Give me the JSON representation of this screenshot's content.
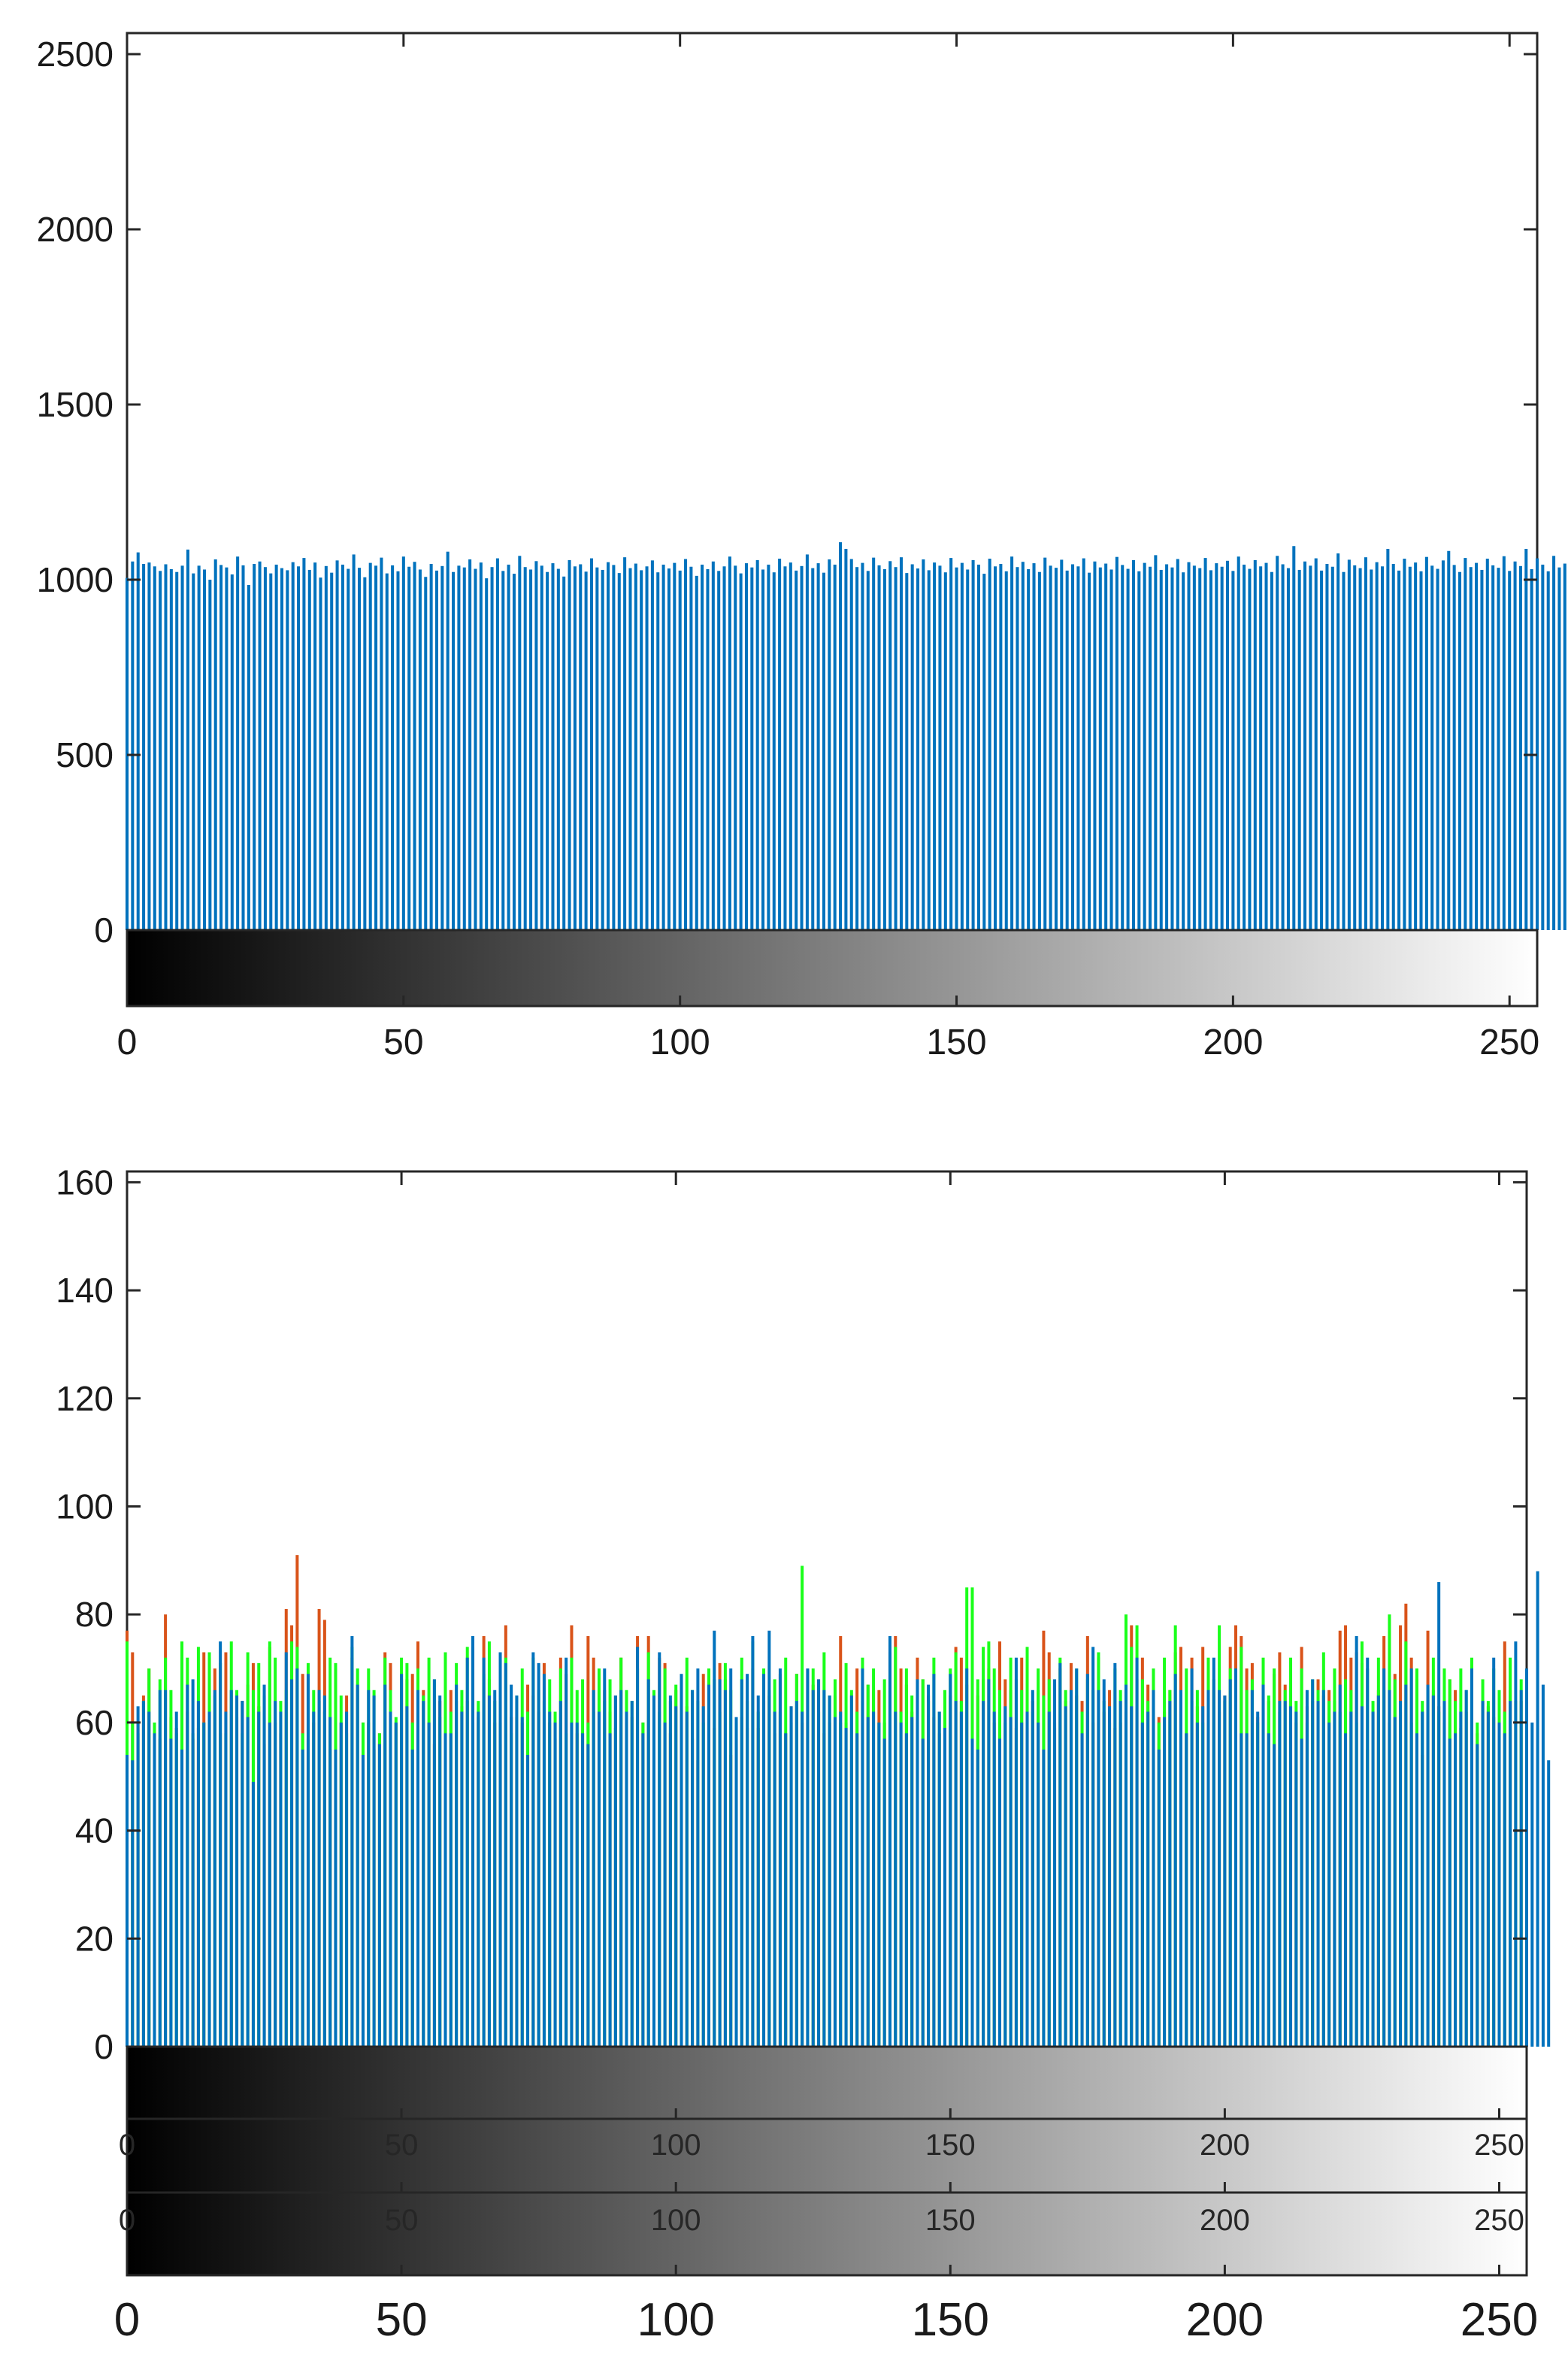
{
  "chart_data": [
    {
      "type": "bar",
      "description": "Gray-level histogram (256 bins)",
      "x_range": [
        0,
        255
      ],
      "ylim": [
        0,
        2560
      ],
      "yticks": [
        "0",
        "500",
        "1000",
        "1500",
        "2000",
        "2500"
      ],
      "xticks": [
        "0",
        "50",
        "100",
        "150",
        "200",
        "250"
      ],
      "grid": false,
      "colorbar": "grayscale 0-255 below x-axis",
      "series": [
        {
          "color": "#0072bd",
          "values": [
            1005,
            1052,
            1078,
            1045,
            1049,
            1038,
            1025,
            1044,
            1030,
            1022,
            1040,
            1086,
            1018,
            1040,
            1029,
            1000,
            1058,
            1042,
            1035,
            1015,
            1066,
            1041,
            985,
            1045,
            1052,
            1036,
            1018,
            1043,
            1033,
            1027,
            1050,
            1038,
            1062,
            1028,
            1049,
            1006,
            1039,
            1020,
            1055,
            1043,
            1031,
            1072,
            1034,
            1007,
            1048,
            1040,
            1063,
            1018,
            1041,
            1024,
            1066,
            1037,
            1051,
            1029,
            1008,
            1045,
            1026,
            1039,
            1080,
            1022,
            1040,
            1035,
            1058,
            1031,
            1049,
            1004,
            1036,
            1061,
            1025,
            1043,
            1017,
            1068,
            1036,
            1029,
            1053,
            1040,
            1022,
            1047,
            1031,
            1009,
            1056,
            1038,
            1044,
            1023,
            1061,
            1035,
            1028,
            1050,
            1042,
            1019,
            1064,
            1033,
            1046,
            1027,
            1038,
            1055,
            1021,
            1043,
            1032,
            1048,
            1026,
            1059,
            1037,
            1011,
            1043,
            1030,
            1052,
            1025,
            1038,
            1066,
            1040,
            1018,
            1047,
            1035,
            1056,
            1029,
            1043,
            1021,
            1060,
            1038,
            1049,
            1026,
            1039,
            1072,
            1033,
            1047,
            1020,
            1058,
            1043,
            1107,
            1088,
            1059,
            1036,
            1048,
            1025,
            1063,
            1041,
            1030,
            1053,
            1036,
            1064,
            1019,
            1044,
            1032,
            1058,
            1027,
            1049,
            1040,
            1021,
            1062,
            1035,
            1048,
            1029,
            1056,
            1043,
            1017,
            1060,
            1038,
            1045,
            1024,
            1066,
            1036,
            1051,
            1030,
            1047,
            1022,
            1063,
            1040,
            1034,
            1057,
            1026,
            1044,
            1038,
            1061,
            1020,
            1052,
            1035,
            1046,
            1029,
            1065,
            1042,
            1031,
            1056,
            1024,
            1048,
            1037,
            1070,
            1028,
            1044,
            1035,
            1059,
            1021,
            1050,
            1040,
            1033,
            1062,
            1027,
            1047,
            1037,
            1054,
            1025,
            1066,
            1043,
            1031,
            1056,
            1038,
            1048,
            1022,
            1068,
            1044,
            1033,
            1096,
            1028,
            1052,
            1040,
            1061,
            1026,
            1045,
            1037,
            1075,
            1022,
            1057,
            1041,
            1033,
            1064,
            1029,
            1050,
            1038,
            1088,
            1045,
            1026,
            1060,
            1037,
            1049,
            1024,
            1065,
            1040,
            1031,
            1055,
            1082,
            1042,
            1022,
            1062,
            1036,
            1048,
            1028,
            1060,
            1041,
            1034,
            1067,
            1025,
            1052,
            1039,
            1088,
            1030,
            1061,
            1043,
            1024,
            1068,
            1035,
            1046,
            995,
            968
          ]
        }
      ]
    },
    {
      "type": "bar",
      "description": "RGB per-channel histograms (256 bins, overlaid)",
      "x_range": [
        0,
        255
      ],
      "ylim": [
        0,
        162
      ],
      "yticks": [
        "0",
        "20",
        "40",
        "60",
        "80",
        "100",
        "120",
        "140",
        "160"
      ],
      "xticks": [
        "0",
        "50",
        "100",
        "150",
        "200",
        "250"
      ],
      "grid": false,
      "colorbar": "three grayscale strips 0-255 below x-axis",
      "strip_ticks": [
        "0",
        "50",
        "100",
        "150",
        "200",
        "250"
      ],
      "series": [
        {
          "color": "#d95319",
          "values": [
            77,
            73,
            60,
            65,
            70,
            58,
            57,
            80,
            61,
            59,
            72,
            62,
            57,
            59,
            73,
            72,
            70,
            58,
            73,
            66,
            61,
            64,
            67,
            71,
            63,
            56,
            74,
            60,
            58,
            81,
            78,
            91,
            69,
            57,
            60,
            81,
            79,
            55,
            70,
            60,
            65,
            72,
            66,
            60,
            60,
            55,
            58,
            73,
            71,
            60,
            68,
            68,
            69,
            75,
            66,
            60,
            56,
            64,
            68,
            66,
            64,
            63,
            64,
            74,
            61,
            76,
            68,
            60,
            56,
            78,
            61,
            61,
            60,
            67,
            65,
            62,
            71,
            60,
            57,
            72,
            69,
            78,
            58,
            58,
            76,
            72,
            66,
            66,
            62,
            65,
            72,
            60,
            61,
            76,
            60,
            76,
            53,
            72,
            71,
            58,
            66,
            57,
            63,
            57,
            53,
            69,
            67,
            59,
            71,
            68,
            54,
            57,
            61,
            59,
            70,
            59,
            64,
            65,
            58,
            69,
            58,
            63,
            69,
            60,
            70,
            67,
            68,
            58,
            60,
            65,
            76,
            60,
            55,
            70,
            64,
            67,
            66,
            66,
            60,
            73,
            76,
            70,
            67,
            62,
            72,
            68,
            65,
            61,
            58,
            60,
            65,
            74,
            72,
            67,
            68,
            65,
            68,
            70,
            60,
            75,
            68,
            66,
            59,
            72,
            59,
            64,
            66,
            77,
            73,
            59,
            70,
            64,
            71,
            65,
            64,
            76,
            60,
            72,
            62,
            66,
            59,
            60,
            62,
            78,
            68,
            72,
            67,
            63,
            61,
            62,
            66,
            73,
            74,
            58,
            72,
            63,
            74,
            69,
            66,
            62,
            65,
            74,
            78,
            76,
            70,
            71,
            61,
            62,
            64,
            69,
            73,
            67,
            63,
            60,
            74,
            63,
            64,
            68,
            65,
            66,
            64,
            77,
            78,
            72,
            73,
            71,
            55,
            62,
            66,
            76,
            60,
            69,
            78,
            82,
            72,
            68,
            54,
            77,
            66,
            63,
            60,
            68,
            66,
            59,
            62,
            68,
            58,
            64,
            63,
            61,
            57,
            75,
            66,
            60,
            64,
            62
          ]
        },
        {
          "color": "#1aff1a",
          "values": [
            75,
            60,
            58,
            64,
            70,
            60,
            68,
            72,
            66,
            58,
            75,
            72,
            58,
            74,
            60,
            73,
            65,
            71,
            58,
            75,
            66,
            58,
            73,
            66,
            71,
            65,
            75,
            72,
            64,
            66,
            75,
            74,
            58,
            71,
            66,
            64,
            62,
            72,
            71,
            65,
            58,
            74,
            70,
            60,
            70,
            66,
            58,
            72,
            66,
            61,
            72,
            71,
            60,
            70,
            65,
            72,
            68,
            61,
            73,
            62,
            71,
            66,
            74,
            60,
            64,
            69,
            75,
            64,
            60,
            72,
            58,
            65,
            70,
            62,
            72,
            66,
            64,
            68,
            62,
            70,
            58,
            72,
            66,
            68,
            60,
            62,
            70,
            64,
            68,
            59,
            72,
            66,
            64,
            70,
            60,
            73,
            66,
            62,
            70,
            64,
            67,
            62,
            72,
            66,
            64,
            60,
            70,
            68,
            62,
            71,
            66,
            60,
            72,
            64,
            75,
            62,
            70,
            66,
            68,
            62,
            72,
            60,
            69,
            89,
            66,
            70,
            62,
            73,
            65,
            68,
            60,
            71,
            66,
            62,
            72,
            67,
            70,
            60,
            68,
            66,
            74,
            62,
            70,
            65,
            60,
            68,
            64,
            72,
            62,
            66,
            70,
            73,
            64,
            85,
            85,
            68,
            74,
            75,
            70,
            66,
            60,
            72,
            68,
            66,
            74,
            62,
            70,
            65,
            68,
            60,
            72,
            66,
            64,
            70,
            62,
            68,
            66,
            73,
            64,
            60,
            70,
            66,
            80,
            74,
            78,
            68,
            64,
            70,
            60,
            72,
            66,
            78,
            62,
            70,
            64,
            66,
            60,
            72,
            68,
            78,
            64,
            70,
            62,
            74,
            66,
            68,
            60,
            72,
            65,
            70,
            62,
            66,
            72,
            64,
            70,
            60,
            68,
            66,
            73,
            64,
            70,
            62,
            68,
            66,
            60,
            75,
            70,
            64,
            72,
            66,
            80,
            68,
            62,
            75,
            60,
            70,
            64,
            66,
            72,
            62,
            70,
            68,
            64,
            70,
            66,
            72,
            60,
            68,
            64,
            70,
            66,
            62,
            72,
            64,
            68,
            60
          ]
        },
        {
          "color": "#0072bd",
          "values": [
            54,
            53,
            63,
            64,
            62,
            58,
            66,
            66,
            57,
            62,
            55,
            67,
            68,
            64,
            60,
            62,
            66,
            75,
            62,
            66,
            65,
            64,
            61,
            49,
            62,
            67,
            60,
            64,
            62,
            73,
            68,
            70,
            55,
            69,
            62,
            66,
            65,
            61,
            55,
            60,
            62,
            76,
            67,
            54,
            66,
            65,
            56,
            67,
            62,
            60,
            69,
            63,
            55,
            66,
            64,
            60,
            68,
            65,
            58,
            58,
            67,
            62,
            72,
            76,
            62,
            72,
            65,
            66,
            73,
            71,
            67,
            65,
            61,
            54,
            73,
            71,
            69,
            62,
            60,
            64,
            72,
            60,
            60,
            58,
            56,
            66,
            62,
            70,
            58,
            65,
            66,
            62,
            64,
            74,
            58,
            68,
            65,
            73,
            60,
            65,
            63,
            69,
            62,
            66,
            70,
            63,
            67,
            77,
            68,
            66,
            70,
            61,
            68,
            69,
            76,
            65,
            69,
            77,
            62,
            70,
            58,
            63,
            64,
            62,
            70,
            66,
            68,
            66,
            65,
            61,
            62,
            59,
            65,
            58,
            70,
            61,
            62,
            60,
            57,
            76,
            62,
            60,
            58,
            61,
            68,
            57,
            67,
            69,
            62,
            59,
            69,
            64,
            62,
            70,
            57,
            55,
            64,
            68,
            62,
            57,
            63,
            61,
            72,
            60,
            62,
            66,
            60,
            55,
            62,
            68,
            71,
            63,
            66,
            70,
            58,
            69,
            74,
            66,
            68,
            63,
            71,
            64,
            67,
            63,
            72,
            60,
            62,
            66,
            55,
            61,
            64,
            69,
            66,
            58,
            70,
            60,
            63,
            66,
            72,
            66,
            65,
            68,
            70,
            58,
            58,
            66,
            62,
            67,
            58,
            56,
            64,
            64,
            63,
            62,
            57,
            66,
            68,
            64,
            66,
            60,
            62,
            67,
            58,
            62,
            76,
            63,
            72,
            62,
            65,
            70,
            66,
            61,
            64,
            67,
            70,
            58,
            62,
            67,
            65,
            86,
            64,
            57,
            58,
            62,
            66,
            70,
            56,
            64,
            62,
            72,
            60,
            58,
            64,
            75,
            66,
            70,
            60,
            88,
            67,
            53
          ]
        }
      ]
    }
  ]
}
